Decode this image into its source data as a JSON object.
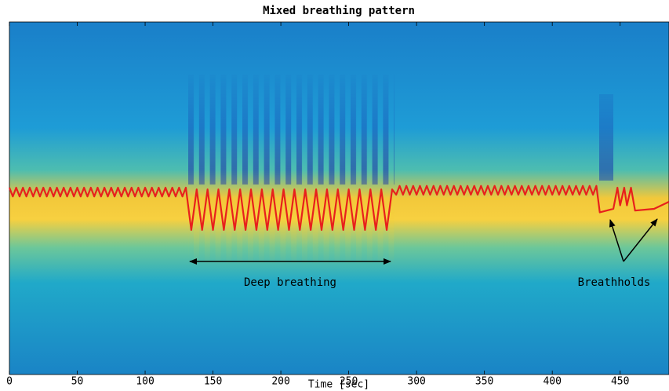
{
  "chart_data": {
    "type": "line",
    "title": "Mixed breathing pattern",
    "x_label": "Time [sec]",
    "xlim": [
      0,
      486
    ],
    "xticks": [
      0,
      50,
      100,
      150,
      200,
      250,
      300,
      350,
      400,
      450
    ],
    "ylim": [
      0,
      1
    ],
    "annotations": [
      "Deep breathing",
      "Breathholds"
    ],
    "series": [
      {
        "color": "#e8201c",
        "x": [
          0,
          2.5,
          5,
          7.5,
          10,
          12.5,
          15,
          17.5,
          20,
          22.5,
          25,
          27.5,
          30,
          32.5,
          35,
          37.5,
          40,
          42.5,
          45,
          47.5,
          50,
          52.5,
          55,
          57.5,
          60,
          62.5,
          65,
          67.5,
          70,
          72.5,
          75,
          77.5,
          80,
          82.5,
          85,
          87.5,
          90,
          92.5,
          95,
          97.5,
          100,
          102.5,
          105,
          107.5,
          110,
          112.5,
          115,
          117.5,
          120,
          122.5,
          125,
          127.5,
          130,
          134,
          138,
          142,
          146,
          150,
          154,
          158,
          162,
          166,
          170,
          174,
          178,
          182,
          186,
          190,
          194,
          198,
          202,
          206,
          210,
          214,
          218,
          222,
          226,
          230,
          234,
          238,
          242,
          246,
          250,
          254,
          258,
          262,
          266,
          270,
          274,
          278,
          282,
          285,
          287.5,
          290,
          292.5,
          295,
          297.5,
          300,
          302.5,
          305,
          307.5,
          310,
          312.5,
          315,
          317.5,
          320,
          322.5,
          325,
          327.5,
          330,
          332.5,
          335,
          337.5,
          340,
          342.5,
          345,
          347.5,
          350,
          352.5,
          355,
          357.5,
          360,
          362.5,
          365,
          367.5,
          370,
          372.5,
          375,
          377.5,
          380,
          382.5,
          385,
          387.5,
          390,
          392.5,
          395,
          397.5,
          400,
          402.5,
          405,
          407.5,
          410,
          412.5,
          415,
          417.5,
          420,
          422.5,
          425,
          427.5,
          430,
          432.5,
          435,
          445,
          448,
          450,
          453,
          455,
          458,
          461,
          475,
          486
        ],
        "values": [
          0.53,
          0.505,
          0.53,
          0.505,
          0.53,
          0.505,
          0.53,
          0.505,
          0.53,
          0.505,
          0.53,
          0.505,
          0.53,
          0.505,
          0.53,
          0.505,
          0.53,
          0.505,
          0.53,
          0.505,
          0.53,
          0.505,
          0.53,
          0.505,
          0.53,
          0.505,
          0.53,
          0.505,
          0.53,
          0.505,
          0.53,
          0.505,
          0.53,
          0.505,
          0.53,
          0.505,
          0.53,
          0.505,
          0.53,
          0.505,
          0.53,
          0.505,
          0.53,
          0.505,
          0.53,
          0.505,
          0.53,
          0.505,
          0.53,
          0.505,
          0.53,
          0.505,
          0.53,
          0.41,
          0.525,
          0.41,
          0.525,
          0.41,
          0.525,
          0.41,
          0.525,
          0.41,
          0.525,
          0.41,
          0.525,
          0.41,
          0.525,
          0.41,
          0.525,
          0.41,
          0.525,
          0.41,
          0.525,
          0.41,
          0.525,
          0.41,
          0.525,
          0.41,
          0.525,
          0.41,
          0.525,
          0.41,
          0.525,
          0.41,
          0.525,
          0.41,
          0.525,
          0.41,
          0.525,
          0.41,
          0.525,
          0.51,
          0.535,
          0.51,
          0.535,
          0.51,
          0.535,
          0.51,
          0.535,
          0.51,
          0.535,
          0.51,
          0.535,
          0.51,
          0.535,
          0.51,
          0.535,
          0.51,
          0.535,
          0.51,
          0.535,
          0.51,
          0.535,
          0.51,
          0.535,
          0.51,
          0.535,
          0.51,
          0.535,
          0.51,
          0.535,
          0.51,
          0.535,
          0.51,
          0.535,
          0.51,
          0.535,
          0.51,
          0.535,
          0.51,
          0.535,
          0.51,
          0.535,
          0.51,
          0.535,
          0.51,
          0.535,
          0.51,
          0.535,
          0.51,
          0.535,
          0.51,
          0.535,
          0.51,
          0.535,
          0.51,
          0.535,
          0.51,
          0.535,
          0.51,
          0.535,
          0.46,
          0.47,
          0.53,
          0.48,
          0.53,
          0.48,
          0.53,
          0.465,
          0.47,
          0.49
        ]
      }
    ]
  }
}
